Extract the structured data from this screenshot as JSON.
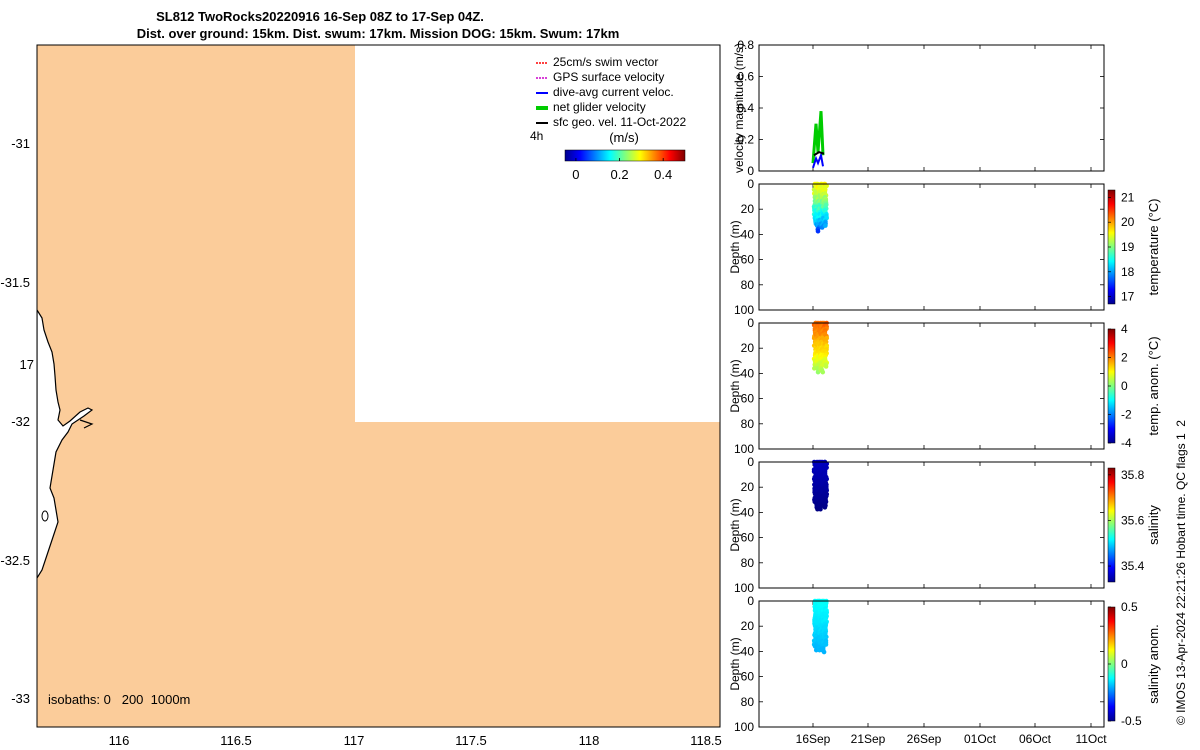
{
  "title": {
    "line1": "SL812 TwoRocks20220916 16-Sep 08Z to 17-Sep 04Z.",
    "line2": "Dist. over ground: 15km. Dist. swum: 17km. Mission DOG: 15km. Swum: 17km"
  },
  "map": {
    "x_ticks": [
      "116",
      "116.5",
      "117",
      "117.5",
      "118",
      "118.5"
    ],
    "y_ticks": [
      "-31",
      "-31.5",
      "-32",
      "-32.5",
      "-33"
    ],
    "mystery_label": "17",
    "isobaths_label": "isobaths: 0   200  1000m",
    "legend": [
      {
        "label": "25cm/s swim vector",
        "color": "#ff0000"
      },
      {
        "label": "GPS surface velocity",
        "color": "#cc00cc"
      },
      {
        "label": "dive-avg current veloc.",
        "color": "#0000ff"
      },
      {
        "label": "net glider velocity",
        "color": "#00cc00"
      },
      {
        "label": "sfc geo. vel. 11-Oct-2022",
        "color": "#000000"
      }
    ],
    "interval_label": "4h",
    "colorbar_title": "(m/s)",
    "colorbar_ticks": [
      "0",
      "0.2",
      "0.4"
    ],
    "colorbar_range": [
      -0.05,
      0.5
    ],
    "land_color": "#ffffff",
    "sea_color": "#fbcc9a"
  },
  "side_label": "© IMOS 13-Apr-2024 22:21:26 Hobart time. QC flags 1  2",
  "time_axis": {
    "ticks": [
      "16Sep",
      "21Sep",
      "26Sep",
      "01Oct",
      "06Oct",
      "11Oct"
    ]
  },
  "chart_data": [
    {
      "type": "line",
      "title": "",
      "ylabel": "velocity magnitude (m/s)",
      "ylim": [
        0,
        0.8
      ],
      "y_ticks": [
        "0",
        "0.2",
        "0.4",
        "0.6",
        "0.8"
      ],
      "x_range_days": "16-Sep to 12-Oct-2022",
      "series": [
        {
          "name": "net glider velocity",
          "values": [
            0.05,
            0.3,
            0.12,
            0.38,
            0.1
          ]
        },
        {
          "name": "dive-avg current veloc.",
          "values": [
            0.02,
            0.08,
            0.05,
            0.1,
            0.03
          ]
        },
        {
          "name": "sfc geo. vel. 11-Oct-2022",
          "values": [
            0.1,
            0.12,
            0.11
          ]
        }
      ]
    },
    {
      "type": "scatter",
      "ylabel": "Depth (m)",
      "y_ticks": [
        "0",
        "20",
        "40",
        "60",
        "80",
        "100"
      ],
      "ylim": [
        100,
        0
      ],
      "colorbar_label": "temperature (°C)",
      "colorbar_ticks": [
        "21",
        "20",
        "19",
        "18",
        "17"
      ],
      "colorbar_range": [
        16.7,
        21.3
      ],
      "depth_profile_max_m": 40,
      "value_range": [
        17.5,
        19.6
      ]
    },
    {
      "type": "scatter",
      "ylabel": "Depth (m)",
      "y_ticks": [
        "0",
        "20",
        "40",
        "60",
        "80",
        "100"
      ],
      "ylim": [
        100,
        0
      ],
      "colorbar_label": "temp. anom. (°C)",
      "colorbar_ticks": [
        "4",
        "2",
        "0",
        "-2",
        "-4"
      ],
      "colorbar_range": [
        -4,
        4
      ],
      "depth_profile_max_m": 40,
      "value_range": [
        0.2,
        2.2
      ]
    },
    {
      "type": "scatter",
      "ylabel": "Depth (m)",
      "y_ticks": [
        "0",
        "20",
        "40",
        "60",
        "80",
        "100"
      ],
      "ylim": [
        100,
        0
      ],
      "colorbar_label": "salinity",
      "colorbar_ticks": [
        "35.8",
        "35.6",
        "35.4"
      ],
      "colorbar_range": [
        35.33,
        35.83
      ],
      "depth_profile_max_m": 40,
      "value_range": [
        35.33,
        35.36
      ]
    },
    {
      "type": "scatter",
      "ylabel": "Depth (m)",
      "y_ticks": [
        "0",
        "20",
        "40",
        "60",
        "80",
        "100"
      ],
      "ylim": [
        100,
        0
      ],
      "colorbar_label": "salinity anom.",
      "colorbar_ticks": [
        "0.5",
        "0",
        "-0.5"
      ],
      "colorbar_range": [
        -0.5,
        0.5
      ],
      "depth_profile_max_m": 40,
      "value_range": [
        -0.2,
        -0.12
      ]
    }
  ]
}
